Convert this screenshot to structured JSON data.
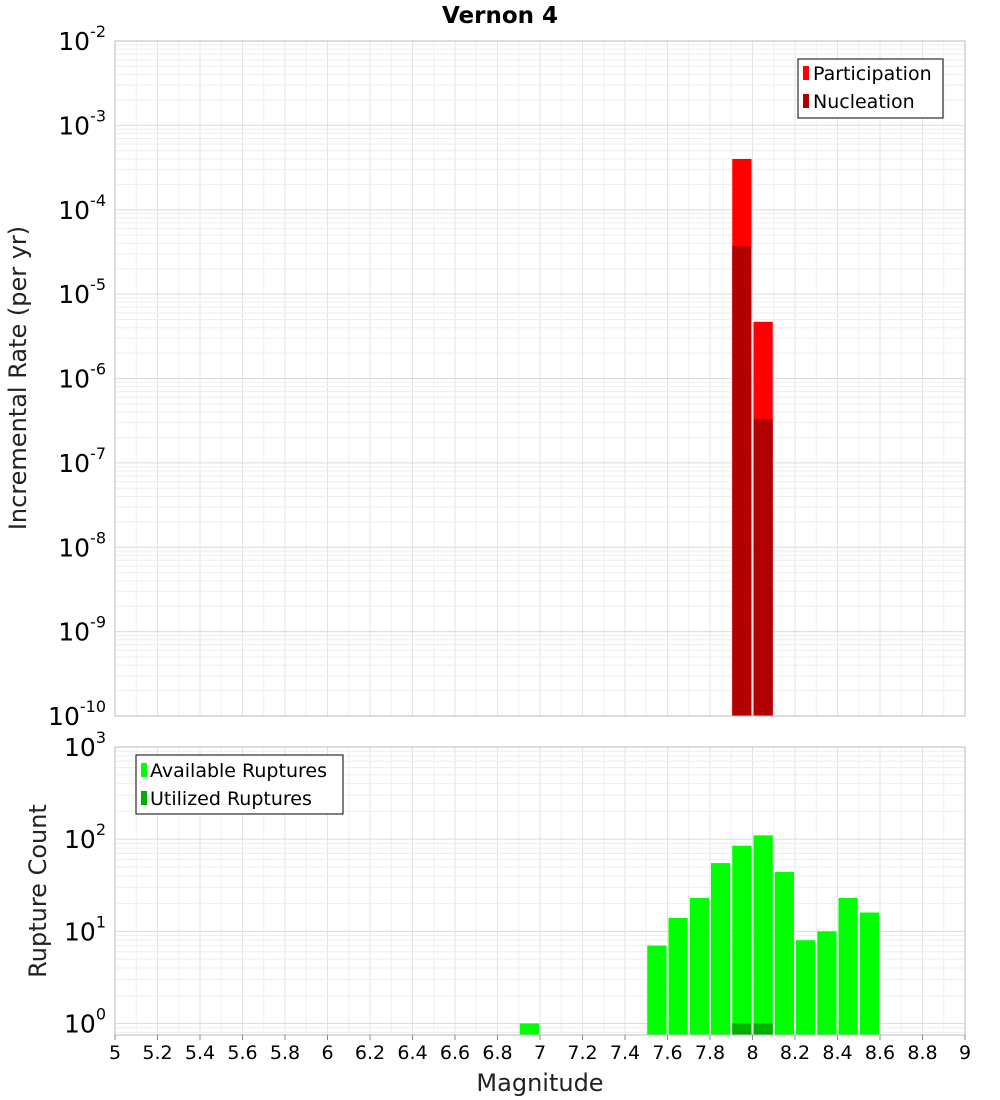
{
  "chart_data": {
    "title": "Vernon 4",
    "xlabel": "Magnitude",
    "xlim": [
      5,
      9
    ],
    "x_ticks": [
      "5",
      "5.2",
      "5.4",
      "5.6",
      "5.8",
      "6",
      "6.2",
      "6.4",
      "6.6",
      "6.8",
      "7",
      "7.2",
      "7.4",
      "7.6",
      "7.8",
      "8",
      "8.2",
      "8.4",
      "8.6",
      "8.8",
      "9"
    ],
    "bin_width": 0.1,
    "grid": true,
    "panels": [
      {
        "type": "bar",
        "yscale": "log",
        "ylabel": "Incremental Rate (per yr)",
        "ylim": [
          1e-10,
          0.01
        ],
        "y_tick_exponents": [
          -10,
          -9,
          -8,
          -7,
          -6,
          -5,
          -4,
          -3,
          -2
        ],
        "legend_position": "top-right",
        "series": [
          {
            "name": "Participation",
            "color": "#ff0000",
            "x": [
              7.95,
              8.05
            ],
            "values": [
              0.0004,
              4.7e-06
            ]
          },
          {
            "name": "Nucleation",
            "color": "#b00000",
            "x": [
              7.95,
              8.05
            ],
            "values": [
              3.7e-05,
              3.3e-07
            ]
          }
        ]
      },
      {
        "type": "bar",
        "yscale": "log",
        "ylabel": "Rupture Count",
        "ylim": [
          0.75,
          1000
        ],
        "y_tick_exponents": [
          0,
          1,
          2,
          3
        ],
        "legend_position": "top-left",
        "series": [
          {
            "name": "Available Ruptures",
            "color": "#00ff00",
            "x": [
              6.95,
              7.55,
              7.65,
              7.75,
              7.85,
              7.95,
              8.05,
              8.15,
              8.25,
              8.35,
              8.45,
              8.55
            ],
            "values": [
              1,
              7,
              14,
              23,
              55,
              85,
              110,
              44,
              8,
              10,
              23,
              16
            ]
          },
          {
            "name": "Utilized Ruptures",
            "color": "#00b000",
            "x": [
              7.95,
              8.05
            ],
            "values": [
              1,
              1
            ]
          }
        ]
      }
    ]
  }
}
